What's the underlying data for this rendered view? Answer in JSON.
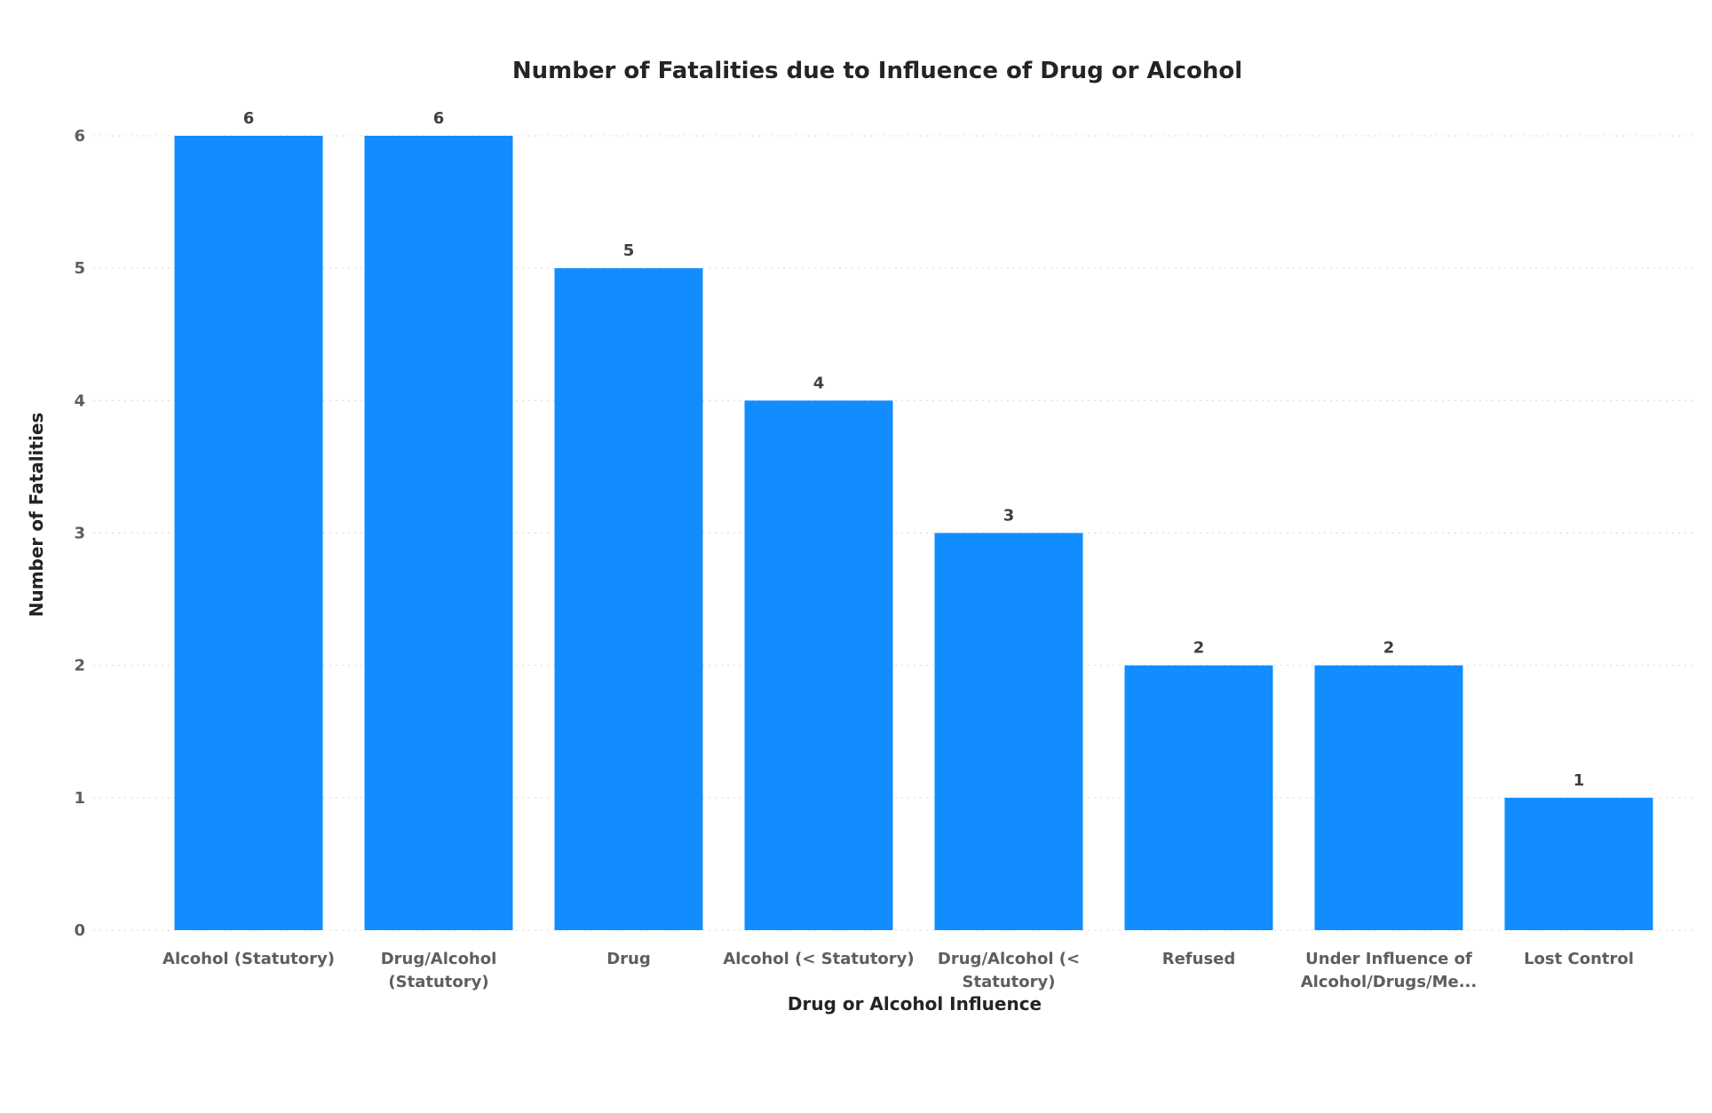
{
  "chart_data": {
    "type": "bar",
    "title": "Number of Fatalities due to Influence of Drug or Alcohol",
    "xlabel": "Drug or Alcohol Influence",
    "ylabel": "Number of Fatalities",
    "categories": [
      "Alcohol (Statutory)",
      "Drug/Alcohol (Statutory)",
      "Drug",
      "Alcohol (< Statutory)",
      "Drug/Alcohol (< Statutory)",
      "Refused",
      "Under Influence of Alcohol/Drugs/Me...",
      "Lost Control"
    ],
    "category_lines": [
      [
        "Alcohol (Statutory)"
      ],
      [
        "Drug/Alcohol",
        "(Statutory)"
      ],
      [
        "Drug"
      ],
      [
        "Alcohol (< Statutory)"
      ],
      [
        "Drug/Alcohol (<",
        "Statutory)"
      ],
      [
        "Refused"
      ],
      [
        "Under Influence of",
        "Alcohol/Drugs/Me..."
      ],
      [
        "Lost Control"
      ]
    ],
    "values": [
      6,
      6,
      5,
      4,
      3,
      2,
      2,
      1
    ],
    "data_labels": [
      "6",
      "6",
      "5",
      "4",
      "3",
      "2",
      "2",
      "1"
    ],
    "yticks": [
      "0",
      "1",
      "2",
      "3",
      "4",
      "5",
      "6"
    ],
    "ylim": [
      0,
      6
    ],
    "grid": true,
    "legend": "none",
    "bar_color": "#118DFF"
  }
}
